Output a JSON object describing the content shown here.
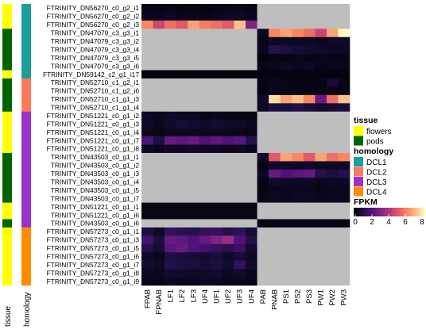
{
  "chart_data": {
    "type": "heatmap",
    "title": "",
    "rows": [
      "FTRINITY_DN56270_c0_g2_i1",
      "FTRINITY_DN56270_c0_g2_i2",
      "FTRINITY_DN56270_c0_g2_i3",
      "TRINITY_DN47079_c3_g3_i1",
      "TRINITY_DN47079_c3_g3_i2",
      "TRINITY_DN47079_c3_g3_i4",
      "TRINITY_DN47079_c3_g3_i5",
      "TRINITY_DN47079_c3_g3_i6",
      "FTRINITY_DN59142_c2_g1_i17",
      "TRINITY_DN52710_c1_g2_i1",
      "TRINITY_DN52710_c1_g2_i6",
      "TRINITY_DN52710_c1_g1_i3",
      "TRINITY_DN52710_c1_g1_i4",
      "FTRINITY_DN51221_c0_g1_i2",
      "FTRINITY_DN51221_c0_g1_i3",
      "FTRINITY_DN51221_c0_g1_i4",
      "FTRINITY_DN51221_c0_g1_i7",
      "FTRINITY_DN51221_c0_g1_i8",
      "TRINITY_DN43503_c0_g1_i1",
      "TRINITY_DN43503_c0_g1_i2",
      "TRINITY_DN43503_c0_g1_i3",
      "TRINITY_DN43503_c0_g1_i4",
      "TRINITY_DN43503_c0_g1_i5",
      "TRINITY_DN43503_c0_g1_i7",
      "TRINITY_DN51221_c0_g1_i1",
      "TRINITY_DN51221_c0_g1_i6",
      "TRINITY_DN43503_c0_g1_i6",
      "FTRINITY_DN57273_c0_g1_i1",
      "FTRINITY_DN57273_c0_g1_i3",
      "FTRINITY_DN57273_c0_g1_i5",
      "FTRINITY_DN57273_c0_g1_i6",
      "FTRINITY_DN57273_c0_g1_i7",
      "FTRINITY_DN57273_c0_g1_i8",
      "FTRINITY_DN57273_c0_g1_i9"
    ],
    "columns": [
      "FPAB",
      "FPNAB",
      "LF1",
      "LF2",
      "LF3",
      "UF4",
      "UF1",
      "UF2",
      "UF3",
      "UF4",
      "PAB",
      "PNAB",
      "PS1",
      "PS2",
      "PS3",
      "PW1",
      "PW2",
      "PW3"
    ],
    "tissue": [
      "flowers",
      "flowers",
      "flowers",
      "pods",
      "pods",
      "pods",
      "pods",
      "pods",
      "flowers",
      "pods",
      "pods",
      "pods",
      "pods",
      "flowers",
      "flowers",
      "flowers",
      "flowers",
      "flowers",
      "pods",
      "pods",
      "pods",
      "pods",
      "pods",
      "pods",
      "flowers",
      "flowers",
      "pods",
      "flowers",
      "flowers",
      "flowers",
      "flowers",
      "flowers",
      "flowers",
      "flowers"
    ],
    "homology": [
      "DCL1",
      "DCL1",
      "DCL1",
      "DCL1",
      "DCL1",
      "DCL1",
      "DCL1",
      "DCL1",
      "DCL1",
      "DCL2",
      "DCL2",
      "DCL2",
      "DCL2",
      "DCL3",
      "DCL3",
      "DCL3",
      "DCL3",
      "DCL3",
      "DCL3",
      "DCL3",
      "DCL3",
      "DCL3",
      "DCL3",
      "DCL3",
      "DCL3",
      "DCL3",
      "DCL3",
      "DCL4",
      "DCL4",
      "DCL4",
      "DCL4",
      "DCL4",
      "DCL4",
      "DCL4"
    ],
    "values": [
      [
        0.3,
        0.3,
        0.3,
        0.2,
        0.3,
        0.2,
        0.3,
        0.3,
        0.4,
        0.3,
        null,
        null,
        null,
        null,
        null,
        null,
        null,
        null
      ],
      [
        0.4,
        0.4,
        0.5,
        0.4,
        0.4,
        0.3,
        0.4,
        0.5,
        0.5,
        0.4,
        null,
        null,
        null,
        null,
        null,
        null,
        null,
        null
      ],
      [
        6.0,
        4.5,
        5.5,
        5.0,
        6.5,
        5.8,
        5.5,
        5.0,
        7.0,
        3.0,
        null,
        null,
        null,
        null,
        null,
        null,
        null,
        null
      ],
      [
        null,
        null,
        null,
        null,
        null,
        null,
        null,
        null,
        null,
        null,
        0.5,
        6.0,
        6.5,
        6.0,
        5.5,
        4.5,
        6.5,
        8.0
      ],
      [
        null,
        null,
        null,
        null,
        null,
        null,
        null,
        null,
        null,
        null,
        0.3,
        0.5,
        0.5,
        0.5,
        0.5,
        0.4,
        0.6,
        0.6
      ],
      [
        null,
        null,
        null,
        null,
        null,
        null,
        null,
        null,
        null,
        null,
        0.4,
        1.2,
        1.0,
        0.8,
        0.7,
        0.6,
        0.5,
        0.5
      ],
      [
        null,
        null,
        null,
        null,
        null,
        null,
        null,
        null,
        null,
        null,
        0.1,
        0.3,
        0.3,
        0.4,
        0.3,
        0.3,
        0.3,
        0.3
      ],
      [
        null,
        null,
        null,
        null,
        null,
        null,
        null,
        null,
        null,
        null,
        0.3,
        0.4,
        0.5,
        0.4,
        0.5,
        0.3,
        0.4,
        0.4
      ],
      [
        0.2,
        0.2,
        0.2,
        0.2,
        0.2,
        0.2,
        0.2,
        0.2,
        0.2,
        0.2,
        0.2,
        0.2,
        0.2,
        0.2,
        0.2,
        0.2,
        0.2,
        0.2
      ],
      [
        null,
        null,
        null,
        null,
        null,
        null,
        null,
        null,
        null,
        null,
        0.3,
        0.4,
        0.3,
        0.3,
        0.3,
        0.3,
        0.8,
        0.3
      ],
      [
        null,
        null,
        null,
        null,
        null,
        null,
        null,
        null,
        null,
        null,
        0.2,
        0.4,
        0.3,
        0.3,
        0.3,
        0.3,
        0.3,
        0.3
      ],
      [
        null,
        null,
        null,
        null,
        null,
        null,
        null,
        null,
        null,
        null,
        0.6,
        7.5,
        6.5,
        7.0,
        6.0,
        2.5,
        5.5,
        7.0
      ],
      [
        null,
        null,
        null,
        null,
        null,
        null,
        null,
        null,
        null,
        null,
        0.5,
        1.0,
        1.0,
        1.2,
        0.9,
        0.7,
        0.8,
        0.9
      ],
      [
        0.5,
        0.4,
        0.6,
        0.5,
        0.5,
        0.3,
        0.4,
        0.3,
        0.3,
        0.3,
        null,
        null,
        null,
        null,
        null,
        null,
        null,
        null
      ],
      [
        0.6,
        0.4,
        0.6,
        0.8,
        0.7,
        0.6,
        0.7,
        0.6,
        0.6,
        0.4,
        null,
        null,
        null,
        null,
        null,
        null,
        null,
        null
      ],
      [
        0.4,
        0.3,
        0.4,
        0.4,
        0.4,
        0.4,
        0.4,
        0.4,
        0.4,
        0.3,
        null,
        null,
        null,
        null,
        null,
        null,
        null,
        null
      ],
      [
        2.0,
        1.0,
        2.5,
        2.2,
        2.5,
        2.0,
        2.3,
        2.0,
        2.2,
        1.2,
        null,
        null,
        null,
        null,
        null,
        null,
        null,
        null
      ],
      [
        0.5,
        0.4,
        0.6,
        0.5,
        0.6,
        0.5,
        0.5,
        0.4,
        0.5,
        0.4,
        null,
        null,
        null,
        null,
        null,
        null,
        null,
        null
      ],
      [
        null,
        null,
        null,
        null,
        null,
        null,
        null,
        null,
        null,
        null,
        0.6,
        5.0,
        6.5,
        6.0,
        5.0,
        6.5,
        5.5,
        6.0
      ],
      [
        null,
        null,
        null,
        null,
        null,
        null,
        null,
        null,
        null,
        null,
        0.3,
        0.6,
        0.6,
        0.5,
        0.6,
        0.5,
        0.5,
        0.5
      ],
      [
        null,
        null,
        null,
        null,
        null,
        null,
        null,
        null,
        null,
        null,
        0.5,
        2.5,
        2.0,
        2.2,
        2.5,
        1.2,
        1.0,
        1.2
      ],
      [
        null,
        null,
        null,
        null,
        null,
        null,
        null,
        null,
        null,
        null,
        0.3,
        0.6,
        0.5,
        0.5,
        0.5,
        0.4,
        0.5,
        0.5
      ],
      [
        null,
        null,
        null,
        null,
        null,
        null,
        null,
        null,
        null,
        null,
        0.3,
        0.4,
        0.4,
        0.4,
        0.4,
        0.3,
        0.4,
        0.4
      ],
      [
        null,
        null,
        null,
        null,
        null,
        null,
        null,
        null,
        null,
        null,
        0.3,
        0.5,
        0.4,
        0.5,
        0.5,
        0.4,
        0.4,
        0.4
      ],
      [
        0.3,
        0.3,
        0.3,
        0.3,
        0.3,
        0.3,
        0.3,
        0.3,
        0.3,
        0.3,
        null,
        null,
        null,
        null,
        null,
        null,
        null,
        null
      ],
      [
        0.3,
        0.3,
        0.3,
        0.3,
        0.3,
        0.3,
        0.3,
        0.3,
        0.3,
        0.3,
        null,
        null,
        null,
        null,
        null,
        null,
        null,
        null
      ],
      [
        null,
        null,
        null,
        null,
        null,
        null,
        null,
        null,
        null,
        null,
        0.3,
        0.3,
        0.3,
        0.3,
        0.3,
        0.3,
        0.3,
        0.3
      ],
      [
        1.0,
        0.6,
        1.5,
        1.3,
        1.2,
        1.4,
        1.5,
        1.2,
        1.4,
        0.8,
        null,
        null,
        null,
        null,
        null,
        null,
        null,
        null
      ],
      [
        1.8,
        1.0,
        2.5,
        2.3,
        2.0,
        2.5,
        3.0,
        3.5,
        2.0,
        1.2,
        null,
        null,
        null,
        null,
        null,
        null,
        null,
        null
      ],
      [
        1.2,
        0.8,
        2.2,
        2.5,
        2.0,
        1.8,
        1.5,
        1.3,
        1.6,
        0.7,
        null,
        null,
        null,
        null,
        null,
        null,
        null,
        null
      ],
      [
        0.6,
        0.4,
        1.0,
        0.9,
        0.8,
        0.7,
        0.9,
        0.6,
        0.8,
        0.5,
        null,
        null,
        null,
        null,
        null,
        null,
        null,
        null
      ],
      [
        0.7,
        0.5,
        1.2,
        1.0,
        1.0,
        0.8,
        1.0,
        0.7,
        1.5,
        0.6,
        null,
        null,
        null,
        null,
        null,
        null,
        null,
        null
      ],
      [
        0.5,
        0.4,
        0.7,
        0.6,
        0.5,
        0.6,
        0.7,
        0.5,
        0.6,
        0.4,
        null,
        null,
        null,
        null,
        null,
        null,
        null,
        null
      ],
      [
        0.4,
        0.3,
        0.5,
        0.4,
        0.4,
        0.5,
        0.5,
        0.4,
        0.4,
        0.3,
        null,
        null,
        null,
        null,
        null,
        null,
        null,
        null
      ]
    ],
    "annotation_labels": [
      "tissue",
      "homology"
    ],
    "legend": {
      "tissue": {
        "title": "tissue",
        "entries": [
          {
            "label": "flowers",
            "color": "#ffff00"
          },
          {
            "label": "pods",
            "color": "#006400"
          }
        ]
      },
      "homology": {
        "title": "homology",
        "entries": [
          {
            "label": "DCL1",
            "color": "#1a9e9e"
          },
          {
            "label": "DCL2",
            "color": "#f97b5a"
          },
          {
            "label": "DCL3",
            "color": "#9932cc"
          },
          {
            "label": "DCL4",
            "color": "#ff8c00"
          }
        ]
      },
      "fpkm": {
        "title": "FPKM",
        "min": 0,
        "max": 8,
        "ticks": [
          0,
          2,
          4,
          6,
          8
        ]
      }
    },
    "missing_color": "#bebebe",
    "colorscale": "magma"
  }
}
